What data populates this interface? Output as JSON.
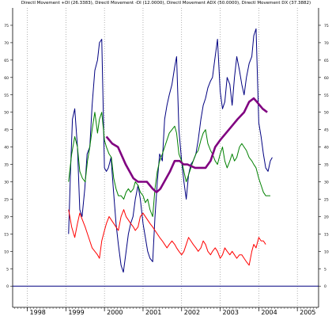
{
  "chart_data": {
    "type": "line",
    "title": "Directl Movement +DI (26.3383), Directl Movement -DI (12.0000), Directl Movement ADX (50.0000), Directl Movement DX (37.3882)",
    "xlabel": "",
    "ylabel": "",
    "x_tick_labels": [
      "1998",
      "1999",
      "2000",
      "2001",
      "2002",
      "2003",
      "2004",
      "2005"
    ],
    "x_ticks": [
      1998,
      1999,
      2000,
      2001,
      2002,
      2003,
      2004,
      2005
    ],
    "xlim": [
      1997.62,
      2005.55
    ],
    "y_ticks": [
      0,
      5,
      10,
      15,
      20,
      25,
      30,
      35,
      40,
      45,
      50,
      55,
      60,
      65,
      70,
      75
    ],
    "y_tick_labels": [
      "0",
      "5",
      "10",
      "15",
      "20",
      "25",
      "30",
      "35",
      "40",
      "45",
      "50",
      "55",
      "60",
      "65",
      "70",
      "75"
    ],
    "ylim": [
      -2,
      80
    ],
    "grid": "vertical-dotted",
    "colors": {
      "plus_di": "#008000",
      "minus_di": "#ff0000",
      "adx": "#800080",
      "dx": "#000080",
      "zero_line": "#000080"
    },
    "series": [
      {
        "key": "dx",
        "name": "",
        "color": "#000080",
        "points": [
          [
            1999.07,
            15
          ],
          [
            1999.12,
            33
          ],
          [
            1999.17,
            48
          ],
          [
            1999.23,
            51
          ],
          [
            1999.3,
            40
          ],
          [
            1999.36,
            22
          ],
          [
            1999.42,
            20
          ],
          [
            1999.49,
            28
          ],
          [
            1999.55,
            38
          ],
          [
            1999.62,
            40
          ],
          [
            1999.68,
            52
          ],
          [
            1999.75,
            62
          ],
          [
            1999.82,
            65
          ],
          [
            1999.87,
            70
          ],
          [
            1999.93,
            71
          ],
          [
            2000.0,
            34
          ],
          [
            2000.05,
            33
          ],
          [
            2000.1,
            34
          ],
          [
            2000.17,
            37
          ],
          [
            2000.23,
            28
          ],
          [
            2000.3,
            18
          ],
          [
            2000.36,
            12
          ],
          [
            2000.43,
            6
          ],
          [
            2000.49,
            4
          ],
          [
            2000.55,
            9
          ],
          [
            2000.62,
            15
          ],
          [
            2000.68,
            18
          ],
          [
            2000.74,
            20
          ],
          [
            2000.8,
            25
          ],
          [
            2000.87,
            29
          ],
          [
            2000.93,
            25
          ],
          [
            2001.0,
            18
          ],
          [
            2001.06,
            14
          ],
          [
            2001.12,
            10
          ],
          [
            2001.18,
            8
          ],
          [
            2001.25,
            7
          ],
          [
            2001.31,
            20
          ],
          [
            2001.37,
            30
          ],
          [
            2001.43,
            38
          ],
          [
            2001.5,
            36
          ],
          [
            2001.56,
            48
          ],
          [
            2001.62,
            52
          ],
          [
            2001.68,
            55
          ],
          [
            2001.75,
            58
          ],
          [
            2001.82,
            63
          ],
          [
            2001.87,
            66
          ],
          [
            2001.93,
            45
          ],
          [
            2002.0,
            36
          ],
          [
            2002.06,
            30
          ],
          [
            2002.12,
            25
          ],
          [
            2002.18,
            32
          ],
          [
            2002.24,
            35
          ],
          [
            2002.3,
            36
          ],
          [
            2002.37,
            38
          ],
          [
            2002.43,
            42
          ],
          [
            2002.5,
            48
          ],
          [
            2002.56,
            52
          ],
          [
            2002.62,
            54
          ],
          [
            2002.68,
            57
          ],
          [
            2002.75,
            59
          ],
          [
            2002.8,
            60
          ],
          [
            2002.87,
            66
          ],
          [
            2002.93,
            71
          ],
          [
            2003.0,
            56
          ],
          [
            2003.06,
            51
          ],
          [
            2003.12,
            53
          ],
          [
            2003.18,
            60
          ],
          [
            2003.25,
            58
          ],
          [
            2003.31,
            52
          ],
          [
            2003.37,
            60
          ],
          [
            2003.43,
            66
          ],
          [
            2003.5,
            62
          ],
          [
            2003.56,
            58
          ],
          [
            2003.62,
            55
          ],
          [
            2003.68,
            60
          ],
          [
            2003.75,
            64
          ],
          [
            2003.82,
            66
          ],
          [
            2003.87,
            72
          ],
          [
            2003.93,
            74
          ],
          [
            2004.0,
            47
          ],
          [
            2004.06,
            43
          ],
          [
            2004.12,
            38
          ],
          [
            2004.18,
            34
          ],
          [
            2004.24,
            33
          ],
          [
            2004.3,
            36
          ],
          [
            2004.35,
            37
          ]
        ]
      },
      {
        "key": "plus_di",
        "name": "",
        "color": "#008000",
        "points": [
          [
            1999.07,
            30
          ],
          [
            1999.15,
            38
          ],
          [
            1999.23,
            43
          ],
          [
            1999.3,
            40
          ],
          [
            1999.36,
            33
          ],
          [
            1999.43,
            31
          ],
          [
            1999.5,
            30
          ],
          [
            1999.56,
            36
          ],
          [
            1999.62,
            40
          ],
          [
            1999.68,
            45
          ],
          [
            1999.75,
            50
          ],
          [
            1999.82,
            44
          ],
          [
            1999.87,
            48
          ],
          [
            1999.93,
            50
          ],
          [
            2000.0,
            42
          ],
          [
            2000.05,
            40
          ],
          [
            2000.12,
            38
          ],
          [
            2000.18,
            37
          ],
          [
            2000.24,
            31
          ],
          [
            2000.3,
            28
          ],
          [
            2000.36,
            26
          ],
          [
            2000.43,
            26
          ],
          [
            2000.5,
            25
          ],
          [
            2000.56,
            27
          ],
          [
            2000.62,
            28
          ],
          [
            2000.68,
            27
          ],
          [
            2000.75,
            28
          ],
          [
            2000.8,
            30
          ],
          [
            2000.87,
            29
          ],
          [
            2000.93,
            27
          ],
          [
            2001.0,
            26
          ],
          [
            2001.06,
            24
          ],
          [
            2001.12,
            25
          ],
          [
            2001.18,
            22
          ],
          [
            2001.25,
            20
          ],
          [
            2001.31,
            28
          ],
          [
            2001.37,
            33
          ],
          [
            2001.43,
            36
          ],
          [
            2001.5,
            38
          ],
          [
            2001.56,
            40
          ],
          [
            2001.62,
            42
          ],
          [
            2001.68,
            44
          ],
          [
            2001.75,
            45
          ],
          [
            2001.82,
            46
          ],
          [
            2001.87,
            44
          ],
          [
            2001.93,
            38
          ],
          [
            2002.0,
            36
          ],
          [
            2002.06,
            33
          ],
          [
            2002.12,
            30
          ],
          [
            2002.18,
            32
          ],
          [
            2002.24,
            34
          ],
          [
            2002.3,
            36
          ],
          [
            2002.37,
            38
          ],
          [
            2002.43,
            39
          ],
          [
            2002.5,
            42
          ],
          [
            2002.56,
            44
          ],
          [
            2002.62,
            45
          ],
          [
            2002.68,
            41
          ],
          [
            2002.75,
            39
          ],
          [
            2002.8,
            38
          ],
          [
            2002.87,
            36
          ],
          [
            2002.93,
            35
          ],
          [
            2003.0,
            38
          ],
          [
            2003.06,
            40
          ],
          [
            2003.12,
            36
          ],
          [
            2003.18,
            34
          ],
          [
            2003.25,
            36
          ],
          [
            2003.31,
            38
          ],
          [
            2003.37,
            36
          ],
          [
            2003.43,
            37
          ],
          [
            2003.5,
            40
          ],
          [
            2003.56,
            41
          ],
          [
            2003.62,
            40
          ],
          [
            2003.68,
            39
          ],
          [
            2003.75,
            37
          ],
          [
            2003.82,
            36
          ],
          [
            2003.87,
            35
          ],
          [
            2003.93,
            34
          ],
          [
            2004.0,
            31
          ],
          [
            2004.06,
            29
          ],
          [
            2004.12,
            27
          ],
          [
            2004.18,
            26
          ],
          [
            2004.24,
            26
          ],
          [
            2004.3,
            26
          ]
        ]
      },
      {
        "key": "minus_di",
        "name": "",
        "color": "#ff0000",
        "points": [
          [
            1999.07,
            22
          ],
          [
            1999.15,
            17
          ],
          [
            1999.23,
            14
          ],
          [
            1999.3,
            18
          ],
          [
            1999.36,
            21
          ],
          [
            1999.43,
            19
          ],
          [
            1999.5,
            17
          ],
          [
            1999.56,
            15
          ],
          [
            1999.62,
            13
          ],
          [
            1999.68,
            11
          ],
          [
            1999.75,
            10
          ],
          [
            1999.82,
            9
          ],
          [
            1999.87,
            8
          ],
          [
            1999.93,
            13
          ],
          [
            2000.0,
            16
          ],
          [
            2000.05,
            18
          ],
          [
            2000.12,
            20
          ],
          [
            2000.18,
            19
          ],
          [
            2000.24,
            18
          ],
          [
            2000.3,
            17
          ],
          [
            2000.36,
            16
          ],
          [
            2000.43,
            20
          ],
          [
            2000.5,
            22
          ],
          [
            2000.56,
            20
          ],
          [
            2000.62,
            19
          ],
          [
            2000.68,
            18
          ],
          [
            2000.75,
            17
          ],
          [
            2000.8,
            16
          ],
          [
            2000.87,
            17
          ],
          [
            2000.93,
            20
          ],
          [
            2001.0,
            21
          ],
          [
            2001.06,
            20
          ],
          [
            2001.12,
            19
          ],
          [
            2001.18,
            18
          ],
          [
            2001.25,
            17
          ],
          [
            2001.31,
            16
          ],
          [
            2001.37,
            15
          ],
          [
            2001.43,
            14
          ],
          [
            2001.5,
            13
          ],
          [
            2001.56,
            12
          ],
          [
            2001.62,
            11
          ],
          [
            2001.68,
            12
          ],
          [
            2001.75,
            13
          ],
          [
            2001.82,
            12
          ],
          [
            2001.87,
            11
          ],
          [
            2001.93,
            10
          ],
          [
            2002.0,
            9
          ],
          [
            2002.06,
            10
          ],
          [
            2002.12,
            12
          ],
          [
            2002.18,
            14
          ],
          [
            2002.24,
            13
          ],
          [
            2002.3,
            12
          ],
          [
            2002.37,
            11
          ],
          [
            2002.43,
            10
          ],
          [
            2002.5,
            11
          ],
          [
            2002.56,
            13
          ],
          [
            2002.62,
            12
          ],
          [
            2002.68,
            10
          ],
          [
            2002.75,
            9
          ],
          [
            2002.8,
            10
          ],
          [
            2002.87,
            11
          ],
          [
            2002.93,
            10
          ],
          [
            2003.0,
            8
          ],
          [
            2003.06,
            9
          ],
          [
            2003.12,
            11
          ],
          [
            2003.18,
            10
          ],
          [
            2003.25,
            9
          ],
          [
            2003.31,
            10
          ],
          [
            2003.37,
            9
          ],
          [
            2003.43,
            8
          ],
          [
            2003.5,
            9
          ],
          [
            2003.56,
            9
          ],
          [
            2003.62,
            8
          ],
          [
            2003.68,
            7
          ],
          [
            2003.75,
            6
          ],
          [
            2003.82,
            10
          ],
          [
            2003.87,
            12
          ],
          [
            2003.93,
            11
          ],
          [
            2004.0,
            14
          ],
          [
            2004.06,
            13
          ],
          [
            2004.12,
            13
          ],
          [
            2004.18,
            12
          ]
        ]
      },
      {
        "key": "adx",
        "name": "",
        "color": "#800080",
        "points": [
          [
            2000.05,
            43
          ],
          [
            2000.2,
            41
          ],
          [
            2000.35,
            40
          ],
          [
            2000.55,
            35
          ],
          [
            2000.75,
            31
          ],
          [
            2000.87,
            30
          ],
          [
            2001.0,
            30
          ],
          [
            2001.1,
            30
          ],
          [
            2001.25,
            28
          ],
          [
            2001.35,
            27
          ],
          [
            2001.45,
            28
          ],
          [
            2001.55,
            30
          ],
          [
            2001.7,
            33
          ],
          [
            2001.82,
            36
          ],
          [
            2001.95,
            36
          ],
          [
            2002.05,
            35
          ],
          [
            2002.15,
            35
          ],
          [
            2002.35,
            34
          ],
          [
            2002.5,
            34
          ],
          [
            2002.62,
            34
          ],
          [
            2002.75,
            36
          ],
          [
            2002.87,
            40
          ],
          [
            2003.0,
            42
          ],
          [
            2003.15,
            44
          ],
          [
            2003.3,
            46
          ],
          [
            2003.45,
            48
          ],
          [
            2003.62,
            50
          ],
          [
            2003.75,
            53
          ],
          [
            2003.87,
            54
          ],
          [
            2003.95,
            53
          ],
          [
            2004.1,
            51
          ],
          [
            2004.22,
            50
          ]
        ]
      }
    ]
  }
}
